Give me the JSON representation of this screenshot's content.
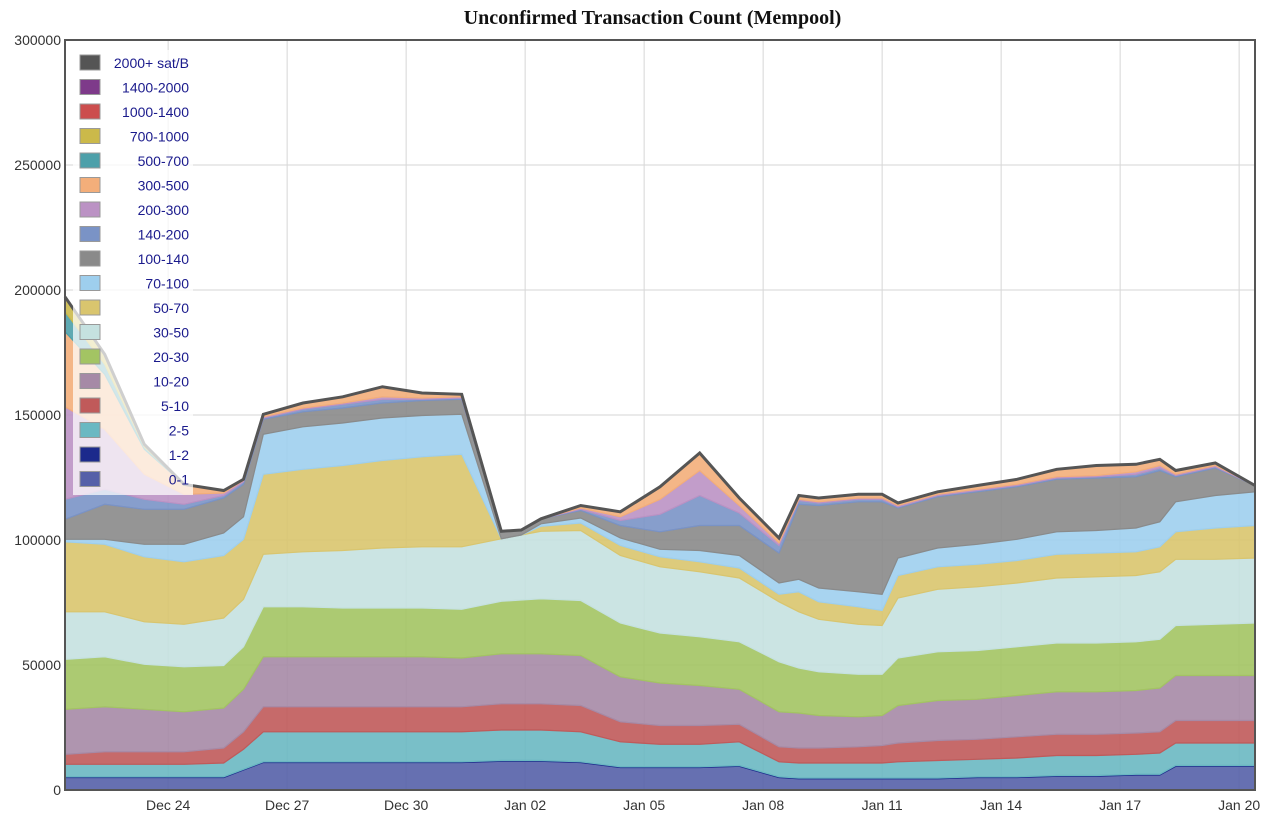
{
  "chart_data": {
    "type": "area",
    "stacked": true,
    "title": "Unconfirmed Transaction Count (Mempool)",
    "xlabel": "",
    "ylabel": "",
    "ylim": [
      0,
      300000
    ],
    "yticks": [
      0,
      50000,
      100000,
      150000,
      200000,
      250000,
      300000
    ],
    "x_tick_labels": [
      "Dec 24",
      "Dec 27",
      "Dec 30",
      "Jan 02",
      "Jan 05",
      "Jan 08",
      "Jan 11",
      "Jan 14",
      "Jan 17",
      "Jan 20"
    ],
    "x_tick_days": [
      2.6,
      5.6,
      8.6,
      11.6,
      14.6,
      17.6,
      20.6,
      23.6,
      26.6,
      29.6
    ],
    "xlim_days": [
      0,
      30
    ],
    "grid": true,
    "legend_position": "top-left",
    "x_days": [
      0,
      1,
      2,
      3,
      4,
      4.5,
      5,
      6,
      7,
      8,
      9,
      10,
      11,
      11.5,
      12,
      13,
      14,
      15,
      16,
      17,
      18,
      18.5,
      19,
      20,
      20.6,
      21,
      22,
      23,
      24,
      25,
      26,
      27,
      27.6,
      28,
      29,
      30
    ],
    "series": [
      {
        "name": "0-1",
        "color": "#5560a8",
        "values": [
          5000,
          5000,
          5000,
          5000,
          5000,
          8000,
          11000,
          11000,
          11000,
          11000,
          11000,
          11000,
          11500,
          11500,
          11500,
          11000,
          9000,
          9000,
          9000,
          9500,
          5000,
          4500,
          4500,
          4500,
          4500,
          4500,
          4500,
          5000,
          5000,
          5500,
          5500,
          6000,
          6000,
          9500,
          9500,
          9500
        ]
      },
      {
        "name": "1-2",
        "color": "#1c2a8c",
        "values": [
          300,
          300,
          300,
          300,
          300,
          300,
          300,
          300,
          300,
          300,
          300,
          300,
          300,
          300,
          300,
          300,
          300,
          300,
          300,
          300,
          300,
          300,
          300,
          300,
          300,
          300,
          300,
          300,
          300,
          300,
          300,
          300,
          300,
          300,
          300,
          300
        ]
      },
      {
        "name": "2-5",
        "color": "#6ab8c2",
        "values": [
          5000,
          5000,
          5000,
          5000,
          5500,
          8000,
          12000,
          12000,
          12000,
          12000,
          12000,
          12000,
          12200,
          12200,
          12200,
          12000,
          10000,
          9000,
          9000,
          9500,
          6000,
          6000,
          6000,
          6000,
          6000,
          6500,
          7000,
          7000,
          7500,
          8000,
          8000,
          8000,
          8500,
          9000,
          9000,
          9000
        ]
      },
      {
        "name": "5-10",
        "color": "#c05a5a",
        "values": [
          4000,
          5000,
          5000,
          5000,
          6000,
          7000,
          10000,
          10000,
          10000,
          10000,
          10000,
          10000,
          10500,
          10500,
          10500,
          10500,
          8000,
          7500,
          7500,
          7000,
          6000,
          6000,
          6000,
          6500,
          7000,
          7500,
          8000,
          8000,
          8500,
          8500,
          8500,
          8500,
          8500,
          9000,
          9000,
          9000
        ]
      },
      {
        "name": "10-20",
        "color": "#a68aa6",
        "values": [
          18000,
          18000,
          17000,
          16000,
          16000,
          17000,
          20000,
          20000,
          20000,
          20000,
          20000,
          19500,
          20000,
          20000,
          20000,
          20000,
          18000,
          17000,
          16000,
          14000,
          14000,
          14000,
          13000,
          12000,
          12000,
          15000,
          16000,
          16000,
          16500,
          17000,
          17000,
          17000,
          17500,
          18000,
          18000,
          18000
        ]
      },
      {
        "name": "20-30",
        "color": "#a3c463",
        "values": [
          20000,
          20000,
          18000,
          18000,
          17000,
          17000,
          20000,
          20000,
          19500,
          19500,
          19500,
          19500,
          21000,
          21500,
          22000,
          22000,
          21500,
          20000,
          19500,
          19000,
          20000,
          18000,
          17500,
          17000,
          16500,
          19000,
          19500,
          19500,
          19500,
          19500,
          19500,
          19500,
          19500,
          20000,
          20500,
          21000
        ]
      },
      {
        "name": "30-50",
        "color": "#c5e1e0",
        "values": [
          19000,
          18000,
          17000,
          17000,
          19000,
          19000,
          21000,
          22000,
          23000,
          24000,
          24500,
          25000,
          25000,
          26000,
          27000,
          28000,
          27000,
          26500,
          26000,
          25500,
          24000,
          22500,
          21000,
          20000,
          19500,
          24000,
          25000,
          25500,
          25500,
          26000,
          26500,
          26500,
          27000,
          26500,
          26000,
          26000
        ]
      },
      {
        "name": "50-70",
        "color": "#d9c56e",
        "values": [
          28000,
          27000,
          26000,
          25000,
          25000,
          24000,
          32000,
          33000,
          34000,
          35000,
          36000,
          37000,
          0,
          0,
          2000,
          3000,
          4000,
          4000,
          4000,
          4000,
          3000,
          8000,
          7000,
          7000,
          6000,
          9000,
          9000,
          9000,
          9000,
          9500,
          9500,
          9500,
          10000,
          11000,
          12500,
          13000
        ]
      },
      {
        "name": "70-100",
        "color": "#9ecfee",
        "values": [
          1000,
          2000,
          5000,
          7000,
          9000,
          9000,
          16000,
          17000,
          17000,
          17000,
          16500,
          16000,
          0,
          0,
          1000,
          2000,
          3000,
          3000,
          4500,
          5000,
          4500,
          5000,
          5500,
          6000,
          6500,
          7000,
          7500,
          8000,
          8500,
          9000,
          9000,
          9500,
          10000,
          12000,
          13000,
          13500
        ]
      },
      {
        "name": "100-140",
        "color": "#8a8a8a",
        "values": [
          8000,
          14000,
          14000,
          14000,
          14000,
          13000,
          6000,
          6000,
          6000,
          6000,
          6000,
          6000,
          3000,
          2000,
          2000,
          3000,
          5000,
          7000,
          10000,
          12000,
          12000,
          30000,
          33000,
          36000,
          37000,
          20000,
          20500,
          21000,
          21000,
          21000,
          21000,
          20500,
          20500,
          10000,
          11000,
          2500
        ]
      },
      {
        "name": "140-200",
        "color": "#7a93c6",
        "values": [
          8000,
          6000,
          4000,
          2000,
          1000,
          1000,
          500,
          1000,
          1500,
          1500,
          500,
          500,
          0,
          0,
          0,
          500,
          2000,
          7000,
          12000,
          5000,
          3000,
          1500,
          1000,
          1000,
          1000,
          500,
          500,
          500,
          500,
          500,
          500,
          1000,
          1000,
          500,
          500,
          0
        ]
      },
      {
        "name": "200-300",
        "color": "#bb92c4",
        "values": [
          37000,
          24000,
          10000,
          4000,
          1000,
          500,
          500,
          500,
          500,
          1000,
          500,
          500,
          0,
          0,
          0,
          500,
          1500,
          6000,
          10000,
          3000,
          1000,
          500,
          500,
          500,
          500,
          500,
          500,
          500,
          500,
          500,
          500,
          1000,
          1000,
          500,
          500,
          0
        ]
      },
      {
        "name": "300-500",
        "color": "#f3ae7a",
        "values": [
          30000,
          22000,
          10000,
          4000,
          1000,
          500,
          1000,
          2000,
          2500,
          4000,
          2000,
          1000,
          0,
          0,
          0,
          1000,
          2000,
          5000,
          7000,
          3000,
          2000,
          1500,
          1500,
          1500,
          1500,
          1000,
          1000,
          1500,
          2000,
          3000,
          4000,
          3000,
          2500,
          1500,
          1000,
          0
        ]
      },
      {
        "name": "500-700",
        "color": "#4da0aa",
        "values": [
          8000,
          4000,
          1000,
          0,
          0,
          0,
          0,
          0,
          0,
          0,
          0,
          0,
          0,
          0,
          0,
          0,
          0,
          0,
          0,
          0,
          0,
          0,
          0,
          0,
          0,
          0,
          0,
          0,
          0,
          0,
          0,
          0,
          0,
          0,
          0,
          0
        ]
      },
      {
        "name": "700-1000",
        "color": "#cbb94a",
        "values": [
          6000,
          4000,
          1000,
          0,
          0,
          0,
          0,
          0,
          0,
          0,
          0,
          0,
          0,
          0,
          0,
          0,
          0,
          0,
          0,
          0,
          0,
          0,
          0,
          0,
          0,
          0,
          0,
          0,
          0,
          0,
          0,
          0,
          0,
          0,
          0,
          0
        ]
      },
      {
        "name": "1000-1400",
        "color": "#cc4d4d",
        "values": [
          0,
          0,
          0,
          0,
          0,
          0,
          0,
          0,
          0,
          0,
          0,
          0,
          0,
          0,
          0,
          0,
          0,
          0,
          0,
          0,
          0,
          0,
          0,
          0,
          0,
          0,
          0,
          0,
          0,
          0,
          0,
          0,
          0,
          0,
          0,
          0
        ]
      },
      {
        "name": "1400-2000",
        "color": "#7e3a8a",
        "values": [
          0,
          0,
          0,
          0,
          0,
          0,
          0,
          0,
          0,
          0,
          0,
          0,
          0,
          0,
          0,
          0,
          0,
          0,
          0,
          0,
          0,
          0,
          0,
          0,
          0,
          0,
          0,
          0,
          0,
          0,
          0,
          0,
          0,
          0,
          0,
          0
        ]
      },
      {
        "name": "2000+ sat/B",
        "color": "#555555",
        "values": [
          0,
          0,
          0,
          0,
          0,
          0,
          0,
          0,
          0,
          0,
          0,
          0,
          0,
          0,
          0,
          0,
          0,
          0,
          0,
          0,
          0,
          0,
          0,
          0,
          0,
          0,
          0,
          0,
          0,
          0,
          0,
          0,
          0,
          0,
          0,
          0
        ]
      }
    ],
    "total_line_color": "#555555",
    "legend_bg": "rgba(255,255,255,0.72)"
  }
}
